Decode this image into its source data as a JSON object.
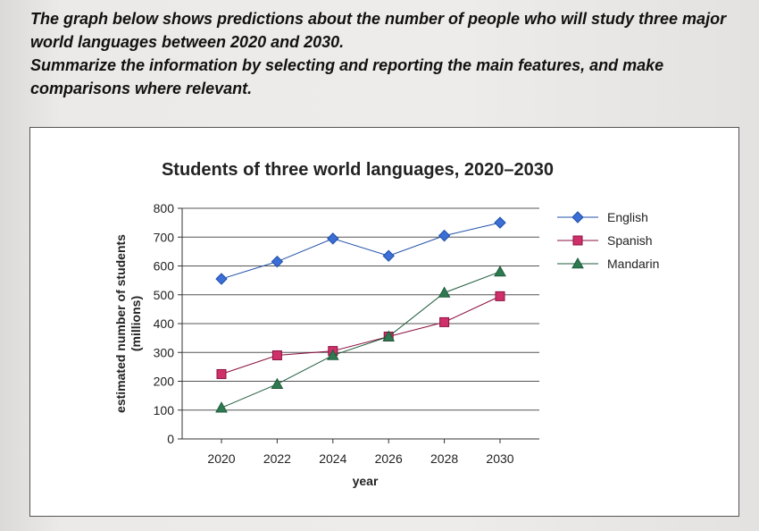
{
  "prompt": {
    "line1": "The graph below shows predictions about the number of people who will study three major world languages between 2020 and 2030.",
    "line2": "Summarize the information by selecting and reporting the main features, and make comparisons where relevant."
  },
  "chart_data": {
    "type": "line",
    "title": "Students of three world languages, 2020–2030",
    "xlabel": "year",
    "ylabel": "estimated number of students (millions)",
    "ylabel_line1": "estimated number of students",
    "ylabel_line2": "(millions)",
    "x": [
      2020,
      2022,
      2024,
      2026,
      2028,
      2030
    ],
    "ylim": [
      0,
      800
    ],
    "yticks": [
      0,
      100,
      200,
      300,
      400,
      500,
      600,
      700,
      800
    ],
    "grid": true,
    "legend_position": "right",
    "series": [
      {
        "name": "English",
        "values": [
          555,
          615,
          695,
          635,
          705,
          750
        ],
        "color": "#1f4fa8",
        "marker": "diamond",
        "marker_color": "#3b6fd6"
      },
      {
        "name": "Spanish",
        "values": [
          225,
          290,
          305,
          355,
          405,
          495
        ],
        "color": "#8a1040",
        "marker": "square",
        "marker_color": "#d0306a"
      },
      {
        "name": "Mandarin",
        "values": [
          108,
          190,
          290,
          355,
          507,
          580
        ],
        "color": "#1d5a3a",
        "marker": "triangle",
        "marker_color": "#2e7a50"
      }
    ]
  }
}
